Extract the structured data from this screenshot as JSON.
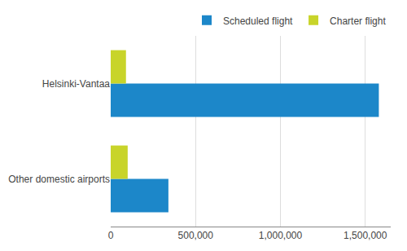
{
  "chart_data": {
    "type": "bar",
    "orientation": "horizontal",
    "categories": [
      "Helsinki-Vantaa",
      "Other domestic airports"
    ],
    "series": [
      {
        "name": "Scheduled flight",
        "color": "#1c87c9",
        "values": [
          1580000,
          340000
        ]
      },
      {
        "name": "Charter flight",
        "color": "#c8d42a",
        "values": [
          90000,
          100000
        ]
      }
    ],
    "xlim": [
      0,
      1650000
    ],
    "xticks": [
      0,
      {
        "value": 500000,
        "label": "500,000"
      },
      {
        "value": 1000000,
        "label": "1,000,000"
      },
      {
        "value": 1500000,
        "label": "1,500,000"
      }
    ],
    "grid": true,
    "legend": "upper right"
  }
}
